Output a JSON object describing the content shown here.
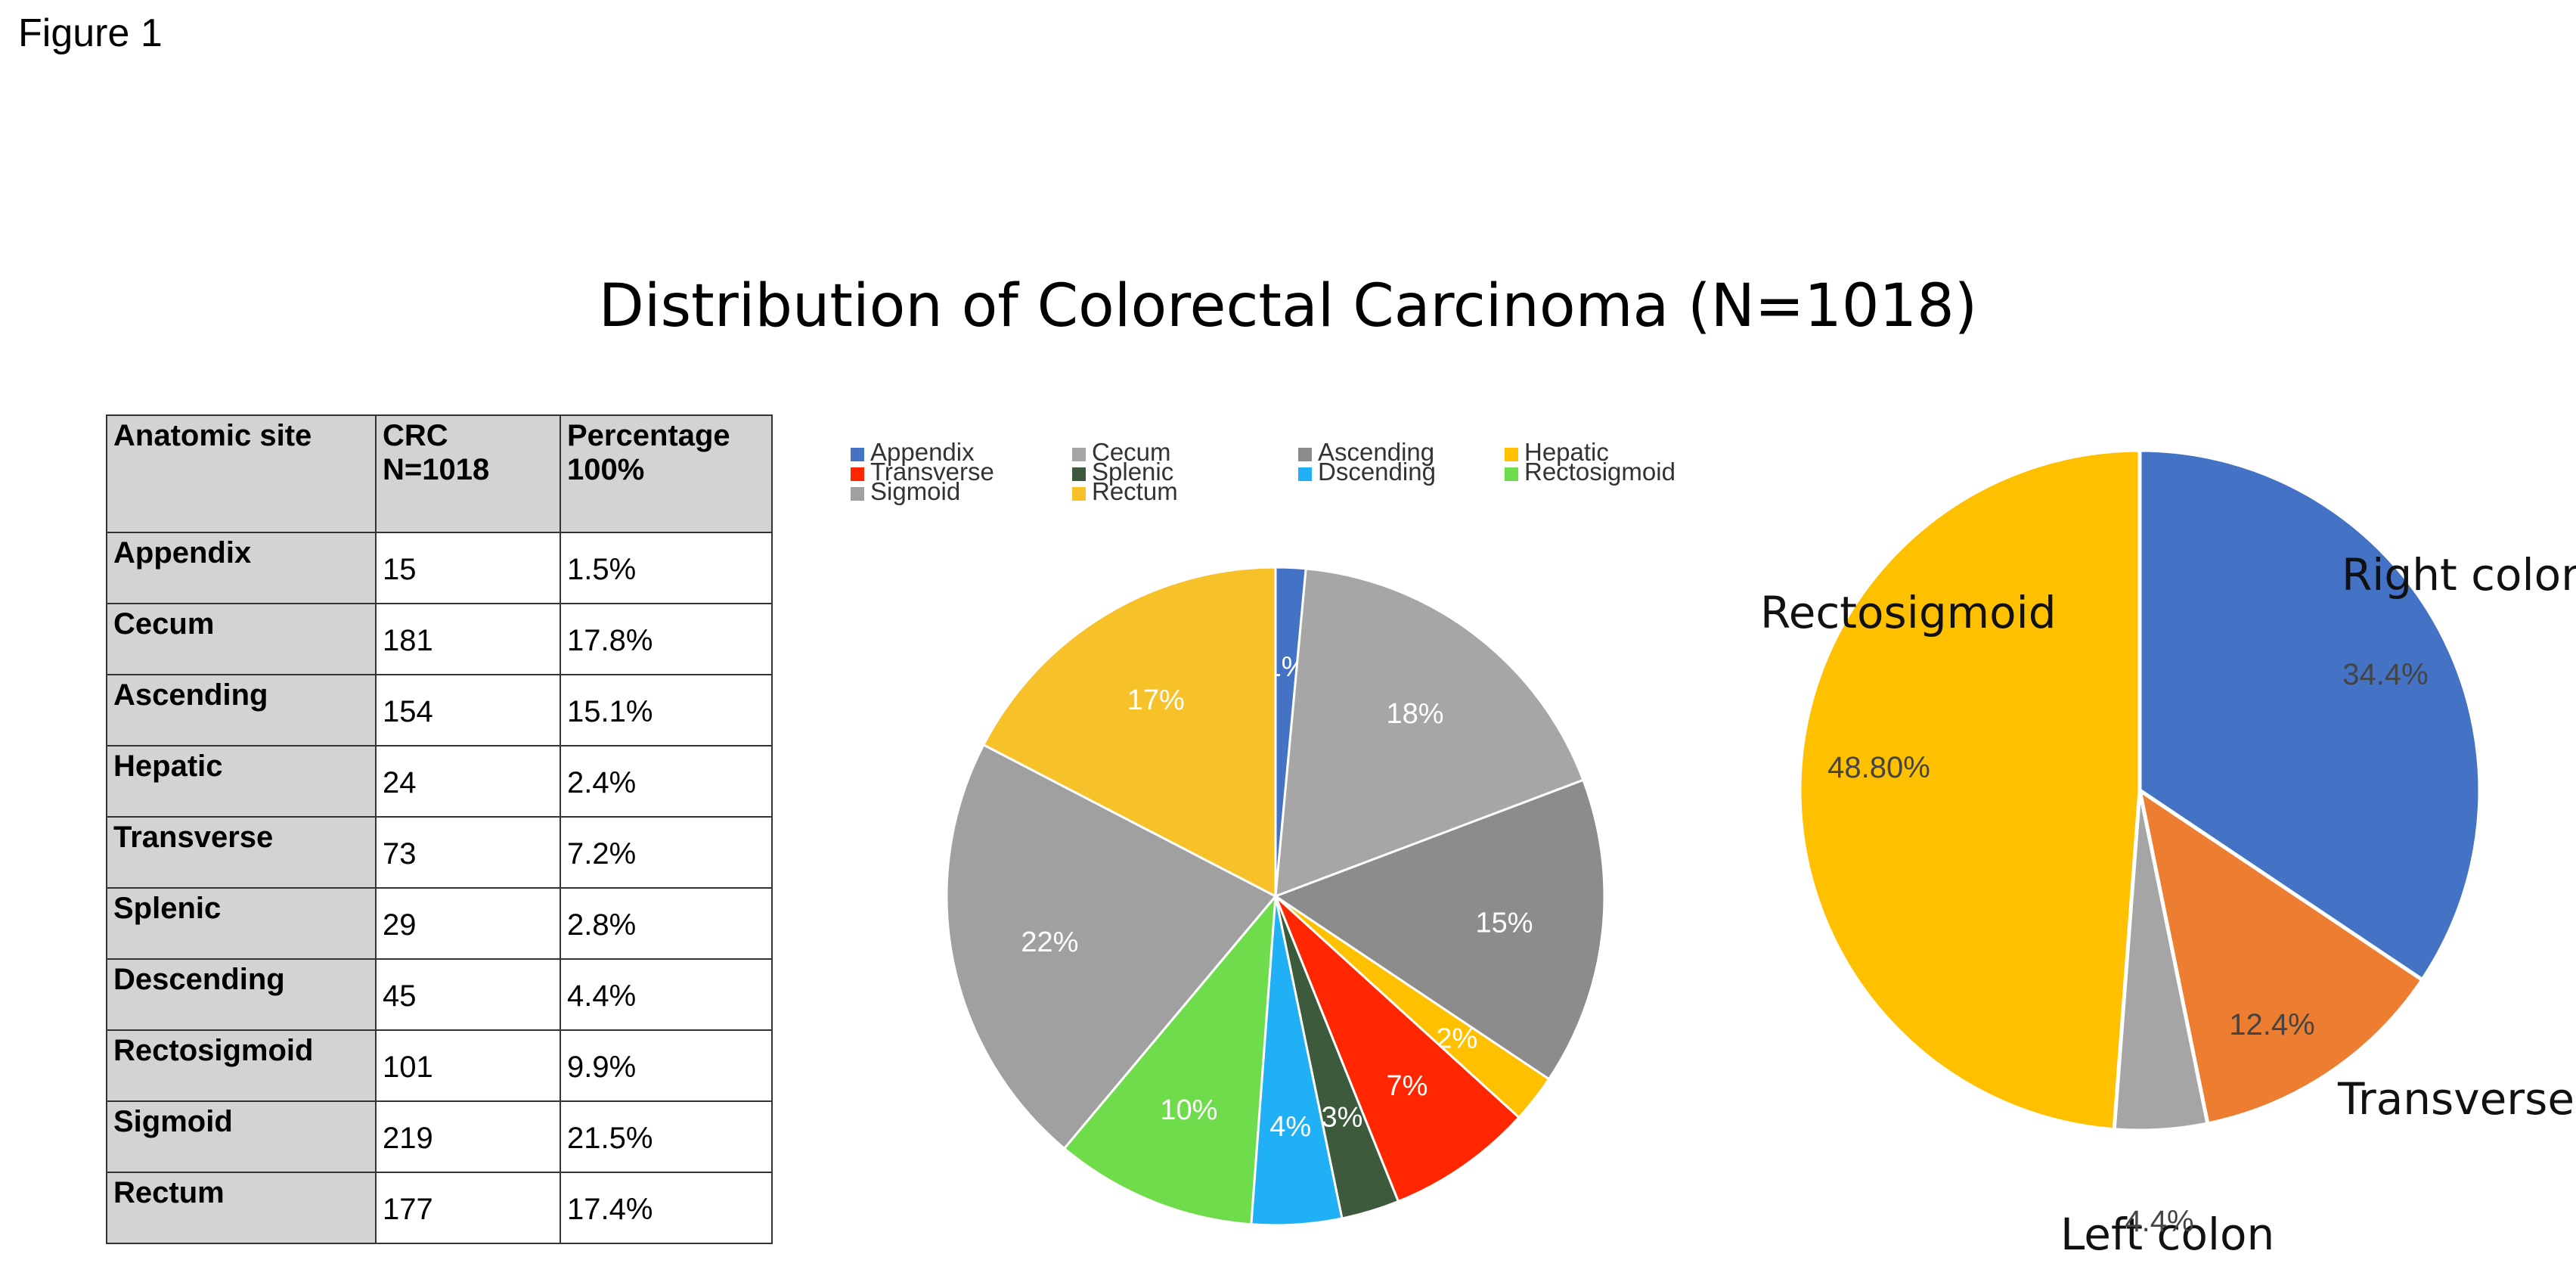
{
  "figure_label": "Figure 1",
  "title": "Distribution of Colorectal Carcinoma (N=1018)",
  "table": {
    "headers": [
      "Anatomic site",
      "CRC N=1018",
      "Percentage 100%"
    ],
    "rows": [
      [
        "Appendix",
        "15",
        "1.5%"
      ],
      [
        "Cecum",
        "181",
        "17.8%"
      ],
      [
        "Ascending",
        "154",
        "15.1%"
      ],
      [
        "Hepatic",
        "24",
        "2.4%"
      ],
      [
        "Transverse",
        "73",
        "7.2%"
      ],
      [
        "Splenic",
        "29",
        "2.8%"
      ],
      [
        "Descending",
        "45",
        "4.4%"
      ],
      [
        "Rectosigmoid",
        "101",
        "9.9%"
      ],
      [
        "Sigmoid",
        "219",
        "21.5%"
      ],
      [
        "Rectum",
        "177",
        "17.4%"
      ]
    ]
  },
  "chart_data": [
    {
      "type": "pie",
      "title": "",
      "legend_position": "top",
      "categories": [
        "Appendix",
        "Cecum",
        "Ascending",
        "Hepatic",
        "Transverse",
        "Splenic",
        "Dscending",
        "Rectosigmoid",
        "Sigmoid",
        "Rectum"
      ],
      "values": [
        15,
        181,
        154,
        24,
        73,
        29,
        45,
        101,
        219,
        177
      ],
      "labels": [
        "1%",
        "18%",
        "15%",
        "2%",
        "7%",
        "3%",
        "4%",
        "10%",
        "22%",
        "17%"
      ],
      "colors": [
        "#4472c4",
        "#a6a6a6",
        "#8c8c8c",
        "#ffc000",
        "#ff2600",
        "#3d5a3d",
        "#1fb0f5",
        "#6fdc4c",
        "#a0a0a0",
        "#f7c12a"
      ]
    },
    {
      "type": "pie",
      "title": "",
      "categories": [
        "Right colon",
        "Transverse",
        "Left colon",
        "Rectosigmoid"
      ],
      "values": [
        34.4,
        12.4,
        4.4,
        48.8
      ],
      "labels": [
        "34.4%",
        "12.4%",
        "4.4%",
        "48.80%"
      ],
      "colors": [
        "#4472c4",
        "#ed7d31",
        "#a5a5a5",
        "#ffc000"
      ]
    }
  ]
}
